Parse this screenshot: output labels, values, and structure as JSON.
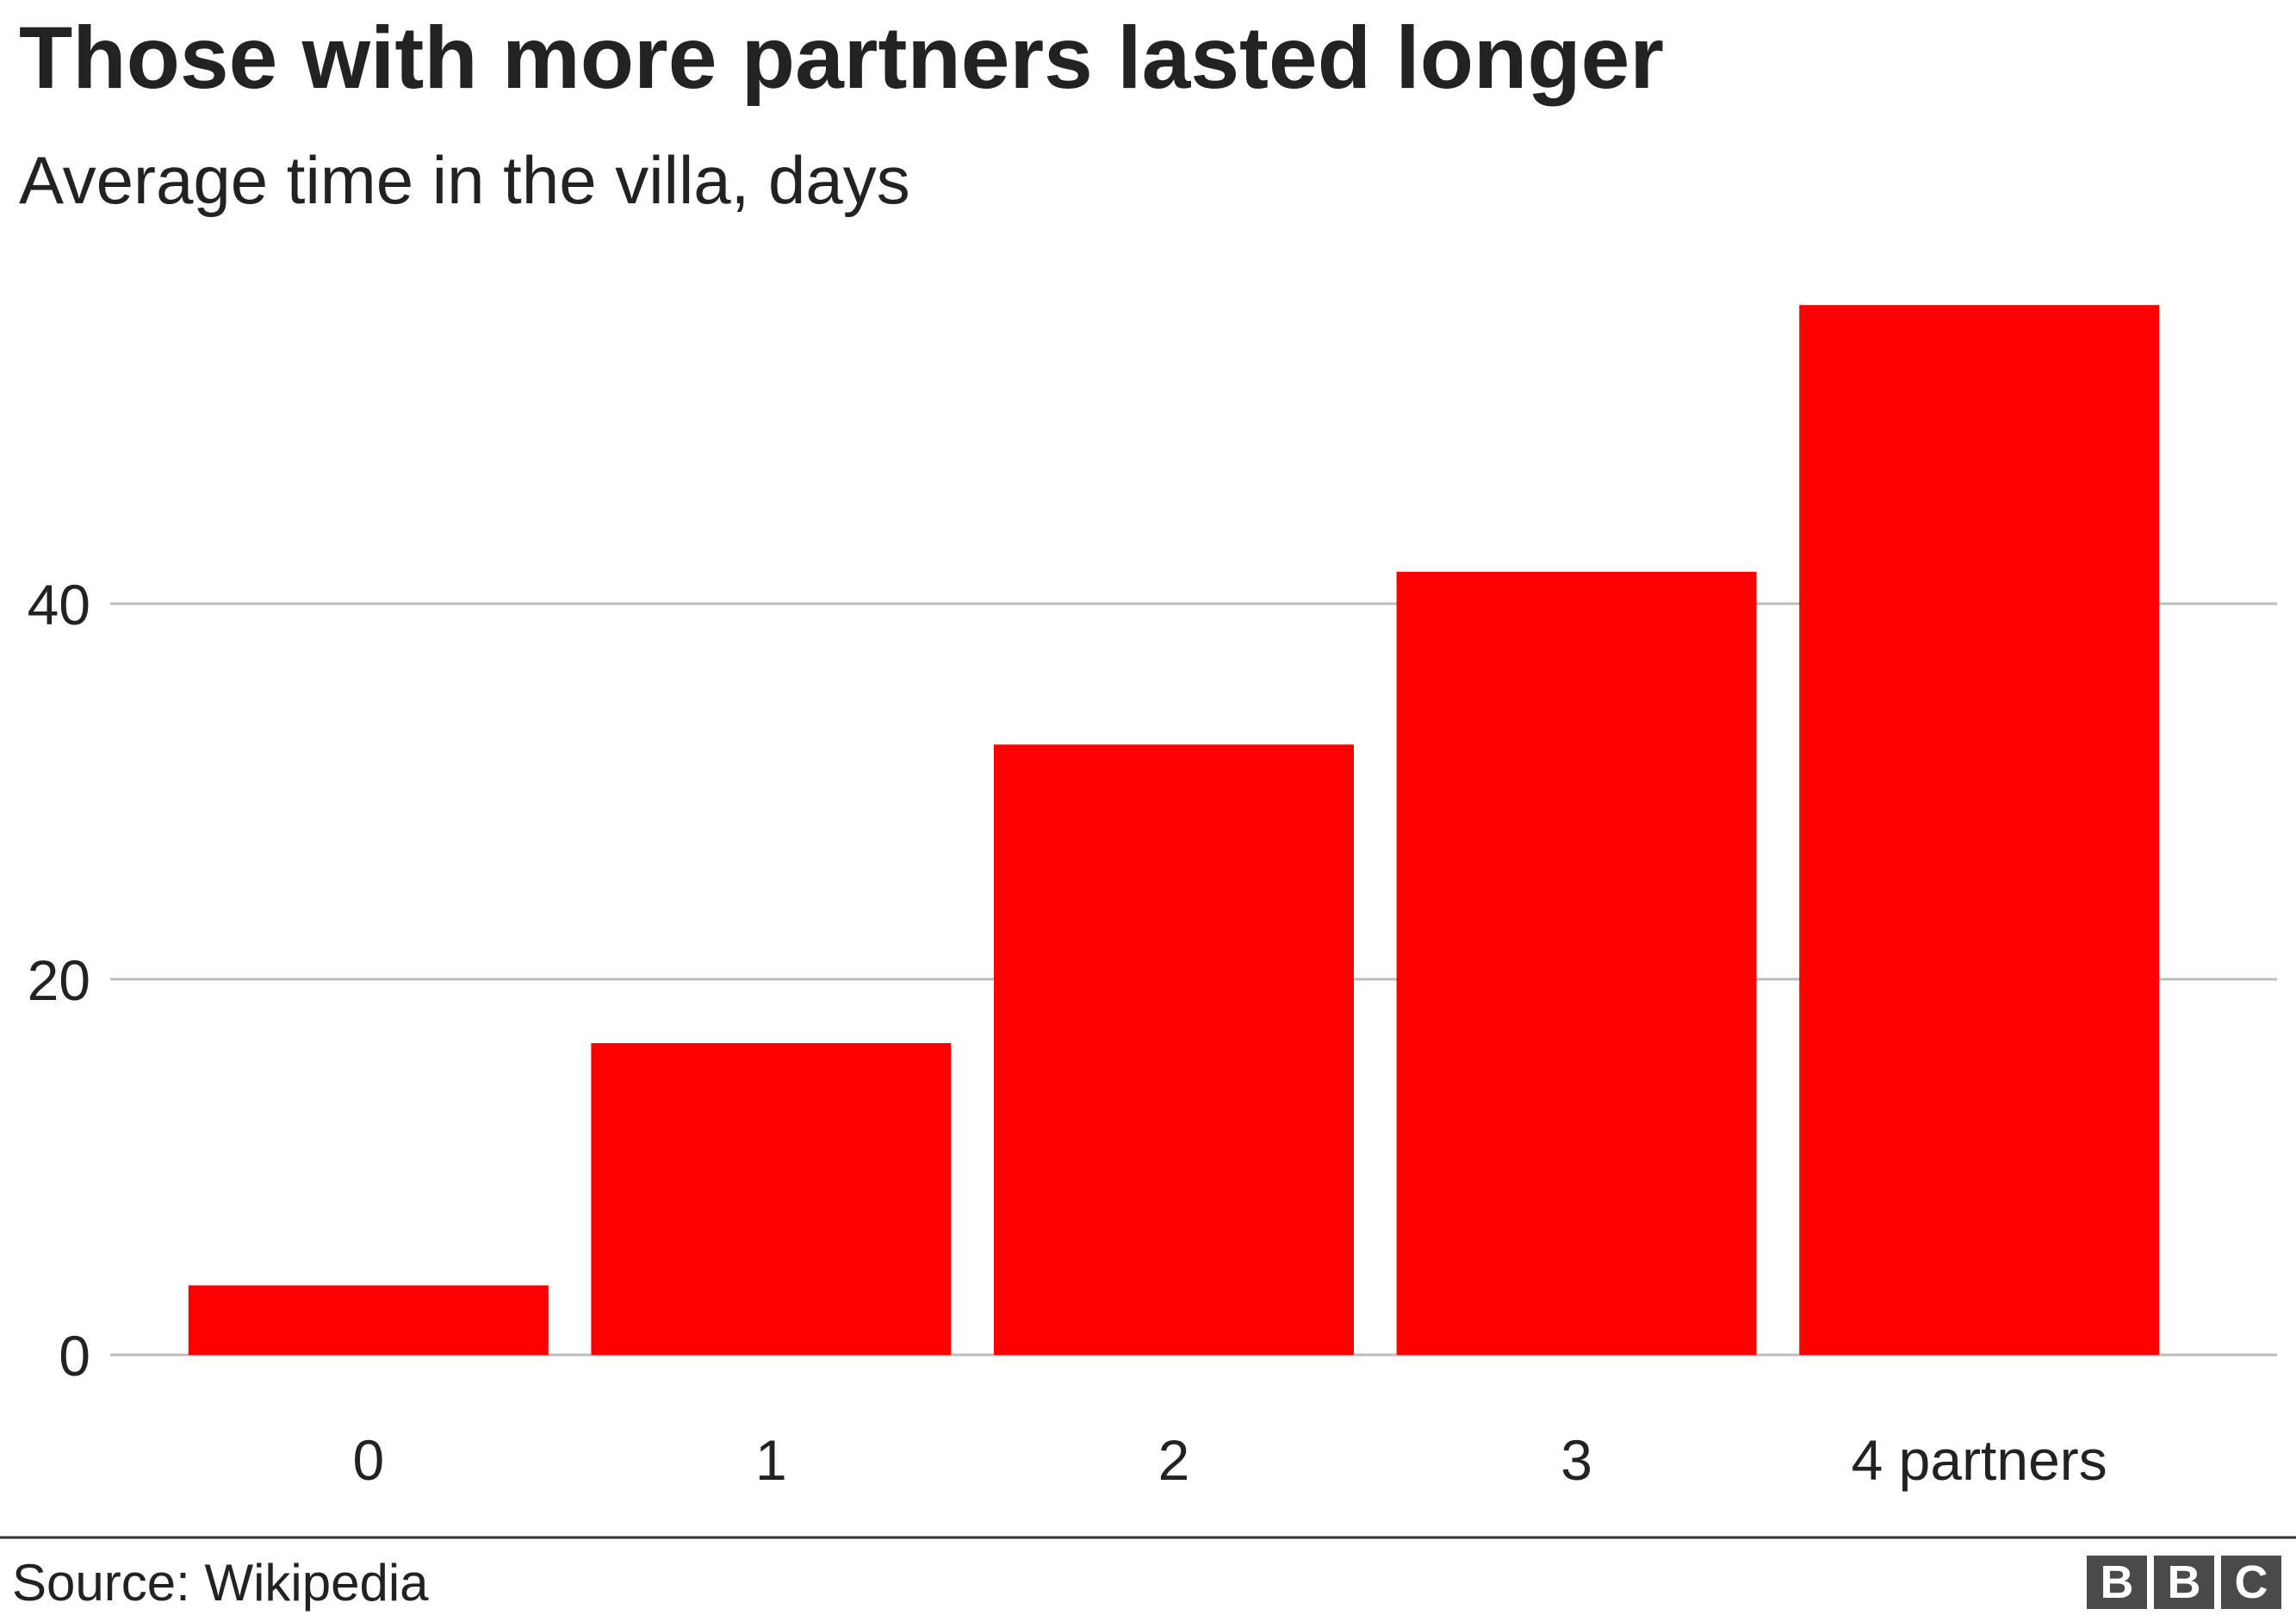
{
  "chart_data": {
    "type": "bar",
    "title": "Those with more partners lasted longer",
    "subtitle": "Average time in the villa, days",
    "categories": [
      "0",
      "1",
      "2",
      "3",
      "4 partners"
    ],
    "values": [
      3.7,
      16.6,
      32.5,
      41.7,
      55.9
    ],
    "color": "#ff0000",
    "ylim": [
      0,
      56
    ],
    "yticks": [
      0,
      20,
      40
    ],
    "grid": true,
    "source": "Source: Wikipedia",
    "logo": [
      "B",
      "B",
      "C"
    ]
  }
}
